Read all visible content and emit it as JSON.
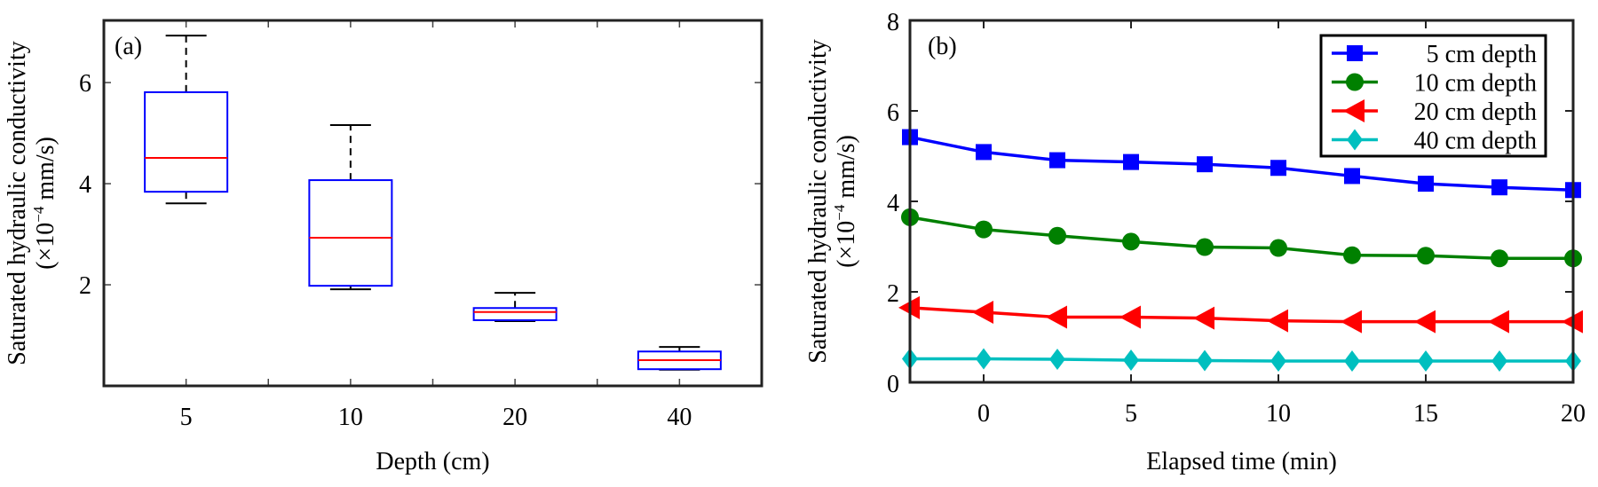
{
  "chart_data": [
    {
      "type": "box",
      "panel_label": "(a)",
      "title": "",
      "xlabel": "Depth (cm)",
      "ylabel_line1": "Saturated hydraulic conductivity",
      "ylabel_line2_prefix": "(×10",
      "ylabel_line2_exp": "−4",
      "ylabel_line2_suffix": " mm/s)",
      "categories": [
        "5",
        "10",
        "20",
        "40"
      ],
      "ylim": [
        0,
        7.23
      ],
      "yticks": [
        2,
        4,
        6
      ],
      "ytick_labels": [
        "2",
        "4",
        "6"
      ],
      "grid": false,
      "boxes": [
        {
          "category": "5",
          "whisker_low": 3.61,
          "q1": 3.84,
          "median": 4.51,
          "q3": 5.81,
          "whisker_high": 6.93
        },
        {
          "category": "10",
          "whisker_low": 1.91,
          "q1": 1.98,
          "median": 2.93,
          "q3": 4.07,
          "whisker_high": 5.16
        },
        {
          "category": "20",
          "whisker_low": 1.28,
          "q1": 1.3,
          "median": 1.46,
          "q3": 1.54,
          "whisker_high": 1.84
        },
        {
          "category": "40",
          "whisker_low": 0.32,
          "q1": 0.33,
          "median": 0.51,
          "q3": 0.68,
          "whisker_high": 0.77
        }
      ],
      "colors": {
        "box": "#0000ff",
        "median": "#ff0000",
        "whisker": "#000000"
      }
    },
    {
      "type": "line",
      "panel_label": "(b)",
      "title": "",
      "xlabel": "Elapsed time (min)",
      "ylabel_line1": "Saturated hydraulic conductivity",
      "ylabel_line2_prefix": "(×10",
      "ylabel_line2_exp": "−4",
      "ylabel_line2_suffix": " mm/s)",
      "xlim": [
        -2.5,
        20
      ],
      "ylim": [
        0,
        8
      ],
      "xticks": [
        0,
        5,
        10,
        15,
        20
      ],
      "xtick_labels": [
        "0",
        "5",
        "10",
        "15",
        "20"
      ],
      "yticks": [
        0,
        2,
        4,
        6,
        8
      ],
      "ytick_labels": [
        "0",
        "2",
        "4",
        "6",
        "8"
      ],
      "grid": false,
      "legend_position": "top-right",
      "x": [
        -2.5,
        0,
        2.5,
        5,
        7.5,
        10,
        12.5,
        15,
        17.5,
        20
      ],
      "series": [
        {
          "name": "5 cm depth",
          "marker": "square",
          "color": "#0000ff",
          "values": [
            5.42,
            5.09,
            4.91,
            4.87,
            4.82,
            4.74,
            4.56,
            4.39,
            4.31,
            4.25
          ]
        },
        {
          "name": "10 cm depth",
          "marker": "circle",
          "color": "#008000",
          "values": [
            3.65,
            3.38,
            3.24,
            3.11,
            2.99,
            2.97,
            2.81,
            2.8,
            2.74,
            2.74
          ]
        },
        {
          "name": "20 cm depth",
          "marker": "triangle-left",
          "color": "#ff0000",
          "values": [
            1.65,
            1.55,
            1.44,
            1.44,
            1.42,
            1.36,
            1.34,
            1.34,
            1.34,
            1.34
          ]
        },
        {
          "name": "40 cm depth",
          "marker": "diamond",
          "color": "#00bfbf",
          "values": [
            0.52,
            0.52,
            0.51,
            0.49,
            0.48,
            0.47,
            0.47,
            0.47,
            0.47,
            0.47
          ]
        }
      ]
    }
  ]
}
